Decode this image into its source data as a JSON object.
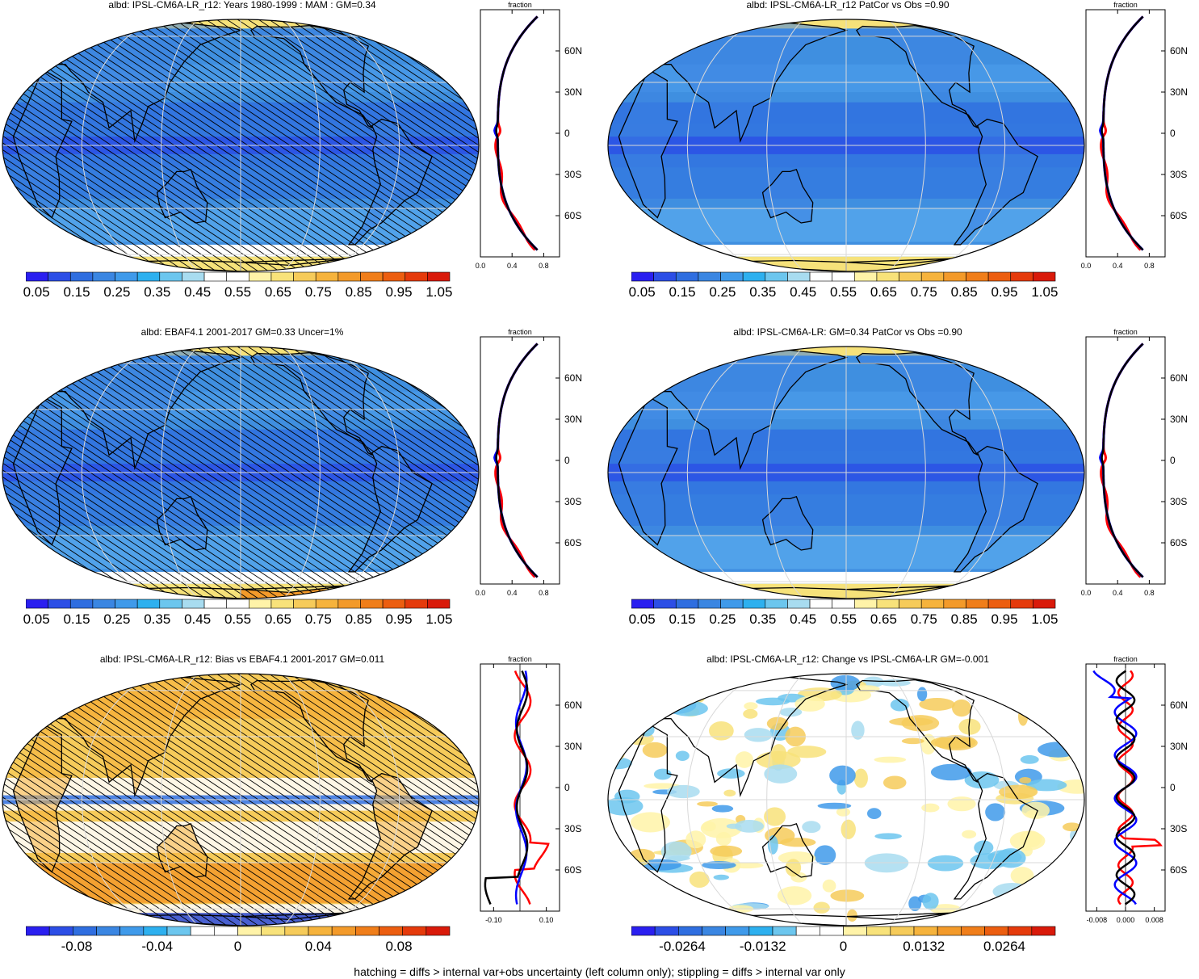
{
  "footer": "hatching = diffs > internal var+obs uncertainty (left column only); stippling = diffs > internal var only",
  "colors": {
    "ocean_blue": "#3f8fe0",
    "land_blue": "#2f6ee0",
    "ice_yellow": "#f6e27a",
    "bias_orange": "#f39a3c",
    "red_line": "#ff0000",
    "blue_line": "#0000ff",
    "black_line": "#000000"
  },
  "chart_data": [
    {
      "type": "heatmap",
      "title": "albd: IPSL-CM6A-LR_r12: Years 1980-1999 : MAM : GM=0.34",
      "colorbar_ticks": [
        "0.05",
        "0.15",
        "0.25",
        "0.35",
        "0.45",
        "0.55",
        "0.65",
        "0.75",
        "0.85",
        "0.95",
        "1.05"
      ],
      "colorbar_colors": [
        "#2a1ff0",
        "#2c4ee6",
        "#2f6ee0",
        "#3a86e2",
        "#3f9aea",
        "#2db0ef",
        "#6cc6ee",
        "#a8dcf0",
        "#ffffff",
        "#ffffff",
        "#fff3a8",
        "#f8e27a",
        "#f6cb5a",
        "#f6b33c",
        "#f39a2a",
        "#f07e1a",
        "#ec5e10",
        "#e53a0b",
        "#d91a0a"
      ],
      "zonal": {
        "label": "fraction",
        "xticks": [
          "0.0",
          "0.4",
          "0.8"
        ],
        "xlim": [
          0,
          1.0
        ],
        "yticks": [
          "60N",
          "30N",
          "0",
          "30S",
          "60S"
        ]
      },
      "hatched": true,
      "theme": "albedo"
    },
    {
      "type": "heatmap",
      "title": "albd: IPSL-CM6A-LR_r12 PatCor vs Obs =0.90",
      "colorbar_ticks": [
        "0.05",
        "0.15",
        "0.25",
        "0.35",
        "0.45",
        "0.55",
        "0.65",
        "0.75",
        "0.85",
        "0.95",
        "1.05"
      ],
      "colorbar_colors": [
        "#2a1ff0",
        "#2c4ee6",
        "#2f6ee0",
        "#3a86e2",
        "#3f9aea",
        "#2db0ef",
        "#6cc6ee",
        "#a8dcf0",
        "#ffffff",
        "#ffffff",
        "#fff3a8",
        "#f8e27a",
        "#f6cb5a",
        "#f6b33c",
        "#f39a2a",
        "#f07e1a",
        "#ec5e10",
        "#e53a0b",
        "#d91a0a"
      ],
      "zonal": {
        "label": "fraction",
        "xticks": [
          "0.0",
          "0.4",
          "0.8"
        ],
        "xlim": [
          0,
          1.0
        ],
        "yticks": [
          "60N",
          "30N",
          "0",
          "30S",
          "60S"
        ]
      },
      "hatched": false,
      "theme": "albedo"
    },
    {
      "type": "heatmap",
      "title": "albd: EBAF4.1 2001-2017 GM=0.33 Uncer=1%",
      "colorbar_ticks": [
        "0.05",
        "0.15",
        "0.25",
        "0.35",
        "0.45",
        "0.55",
        "0.65",
        "0.75",
        "0.85",
        "0.95",
        "1.05"
      ],
      "colorbar_colors": [
        "#2a1ff0",
        "#2c4ee6",
        "#2f6ee0",
        "#3a86e2",
        "#3f9aea",
        "#2db0ef",
        "#6cc6ee",
        "#a8dcf0",
        "#ffffff",
        "#ffffff",
        "#fff3a8",
        "#f8e27a",
        "#f6cb5a",
        "#f6b33c",
        "#f39a2a",
        "#f07e1a",
        "#ec5e10",
        "#e53a0b",
        "#d91a0a"
      ],
      "zonal": {
        "label": "fraction",
        "xticks": [
          "0.0",
          "0.4",
          "0.8"
        ],
        "xlim": [
          0,
          1.0
        ],
        "yticks": [
          "60N",
          "30N",
          "0",
          "30S",
          "60S"
        ]
      },
      "hatched": true,
      "theme": "albedo_obs"
    },
    {
      "type": "heatmap",
      "title": "albd: IPSL-CM6A-LR: GM=0.34 PatCor vs Obs =0.90",
      "colorbar_ticks": [
        "0.05",
        "0.15",
        "0.25",
        "0.35",
        "0.45",
        "0.55",
        "0.65",
        "0.75",
        "0.85",
        "0.95",
        "1.05"
      ],
      "colorbar_colors": [
        "#2a1ff0",
        "#2c4ee6",
        "#2f6ee0",
        "#3a86e2",
        "#3f9aea",
        "#2db0ef",
        "#6cc6ee",
        "#a8dcf0",
        "#ffffff",
        "#ffffff",
        "#fff3a8",
        "#f8e27a",
        "#f6cb5a",
        "#f6b33c",
        "#f39a2a",
        "#f07e1a",
        "#ec5e10",
        "#e53a0b",
        "#d91a0a"
      ],
      "zonal": {
        "label": "fraction",
        "xticks": [
          "0.0",
          "0.4",
          "0.8"
        ],
        "xlim": [
          0,
          1.0
        ],
        "yticks": [
          "60N",
          "30N",
          "0",
          "30S",
          "60S"
        ]
      },
      "hatched": false,
      "theme": "albedo"
    },
    {
      "type": "heatmap",
      "title": "albd: IPSL-CM6A-LR_r12: Bias vs EBAF4.1 2001-2017 GM=0.011",
      "colorbar_ticks": [
        "-0.08",
        "-0.04",
        "0",
        "0.04",
        "0.08"
      ],
      "colorbar_colors": [
        "#2a1ff0",
        "#2c4ee6",
        "#2f6ee0",
        "#3a86e2",
        "#3f9aea",
        "#2db0ef",
        "#6cc6ee",
        "#ffffff",
        "#ffffff",
        "#fff3a8",
        "#f8e27a",
        "#f6cb5a",
        "#f6b33c",
        "#f39a2a",
        "#f07e1a",
        "#ec5e10",
        "#e53a0b",
        "#d91a0a"
      ],
      "zonal": {
        "label": "fraction",
        "xticks": [
          "-0.10",
          "0.10"
        ],
        "xlim": [
          -0.15,
          0.15
        ],
        "yticks": [
          "60N",
          "30N",
          "0",
          "30S",
          "60S"
        ]
      },
      "hatched": true,
      "theme": "bias"
    },
    {
      "type": "heatmap",
      "title": "albd: IPSL-CM6A-LR_r12: Change vs IPSL-CM6A-LR GM=-0.001",
      "colorbar_ticks": [
        "-0.0264",
        "-0.0132",
        "0",
        "0.0132",
        "0.0264"
      ],
      "colorbar_colors": [
        "#2a1ff0",
        "#2c4ee6",
        "#2f6ee0",
        "#3a86e2",
        "#3f9aea",
        "#2db0ef",
        "#6cc6ee",
        "#ffffff",
        "#ffffff",
        "#fff3a8",
        "#f8e27a",
        "#f6cb5a",
        "#f6b33c",
        "#f39a2a",
        "#f07e1a",
        "#ec5e10",
        "#e53a0b",
        "#d91a0a"
      ],
      "zonal": {
        "label": "fraction",
        "xticks": [
          "-0.008",
          "0.000",
          "0.008"
        ],
        "xlim": [
          -0.011,
          0.011
        ],
        "yticks": [
          "60N",
          "30N",
          "0",
          "30S",
          "60S"
        ]
      },
      "hatched": false,
      "theme": "change"
    }
  ]
}
